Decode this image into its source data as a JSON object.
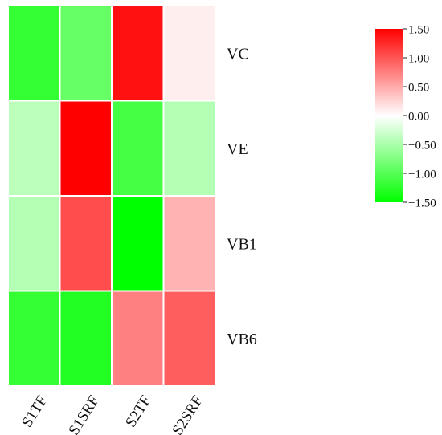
{
  "chart_data": {
    "type": "heatmap",
    "x_categories": [
      "S1TF",
      "S1SRF",
      "S2TF",
      "S2SRF"
    ],
    "y_categories": [
      "VC",
      "VE",
      "VB1",
      "VB6"
    ],
    "values": [
      [
        -1.2,
        -0.9,
        1.4,
        0.1
      ],
      [
        -0.4,
        1.5,
        -1.1,
        -0.45
      ],
      [
        -0.45,
        1.05,
        -1.5,
        0.45
      ],
      [
        -1.2,
        -1.3,
        0.75,
        0.95
      ]
    ],
    "colorbar": {
      "min": -1.5,
      "max": 1.5,
      "tick_labels": [
        "1.50",
        "1.00",
        "0.50",
        "0.00",
        "−0.50",
        "−1.00",
        "−1.50"
      ],
      "tick_values": [
        1.5,
        1.0,
        0.5,
        0.0,
        -0.5,
        -1.0,
        -1.5
      ],
      "low_color": "#00ff00",
      "mid_color": "#ffffff",
      "high_color": "#ff0000"
    },
    "title": "",
    "xlabel": "",
    "ylabel": ""
  }
}
